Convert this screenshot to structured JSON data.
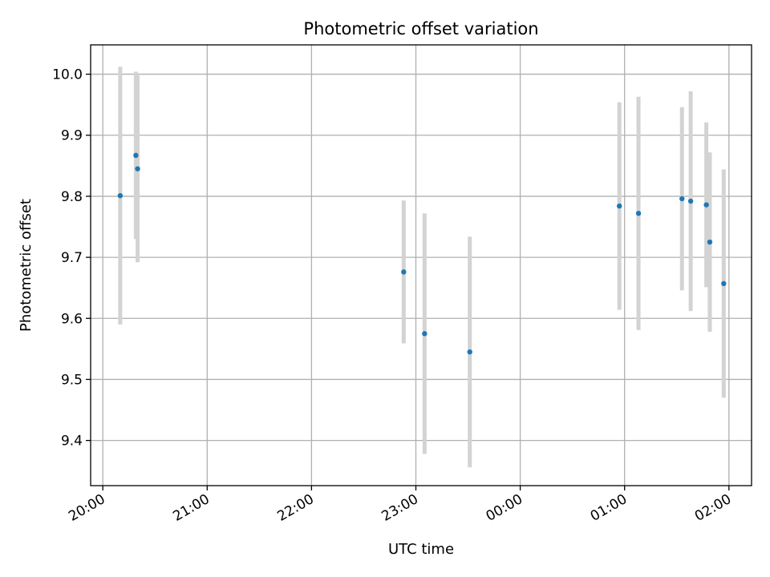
{
  "chart_data": {
    "type": "scatter",
    "title": "Photometric offset variation",
    "xlabel": "UTC time",
    "ylabel": "Photometric offset",
    "grid": true,
    "x_ticks": [
      "20:00",
      "21:00",
      "22:00",
      "23:00",
      "00:00",
      "01:00",
      "02:00"
    ],
    "x_tick_values": [
      "20:00",
      "21:00",
      "22:00",
      "23:00",
      "24:00",
      "25:00",
      "26:00"
    ],
    "xlim": [
      "19:53",
      "26:13"
    ],
    "y_ticks": [
      "9.4",
      "9.5",
      "9.6",
      "9.7",
      "9.8",
      "9.9",
      "10.0"
    ],
    "ylim": [
      9.326,
      10.048
    ],
    "colors": {
      "point": "#1f77b4",
      "error_bar": "#d3d3d3",
      "grid": "#b0b0b0"
    },
    "points": [
      {
        "x": "20:10",
        "y": 9.801,
        "yerr": 0.211
      },
      {
        "x": "20:19",
        "y": 9.867,
        "yerr": 0.137
      },
      {
        "x": "20:20",
        "y": 9.845,
        "yerr": 0.153
      },
      {
        "x": "22:53",
        "y": 9.676,
        "yerr": 0.117
      },
      {
        "x": "23:05",
        "y": 9.575,
        "yerr": 0.197
      },
      {
        "x": "23:31",
        "y": 9.545,
        "yerr": 0.189
      },
      {
        "x": "24:57",
        "y": 9.784,
        "yerr": 0.17
      },
      {
        "x": "25:08",
        "y": 9.772,
        "yerr": 0.191
      },
      {
        "x": "25:33",
        "y": 9.796,
        "yerr": 0.15
      },
      {
        "x": "25:38",
        "y": 9.792,
        "yerr": 0.18
      },
      {
        "x": "25:47",
        "y": 9.786,
        "yerr": 0.135
      },
      {
        "x": "25:49",
        "y": 9.725,
        "yerr": 0.147
      },
      {
        "x": "25:57",
        "y": 9.657,
        "yerr": 0.187
      }
    ]
  }
}
